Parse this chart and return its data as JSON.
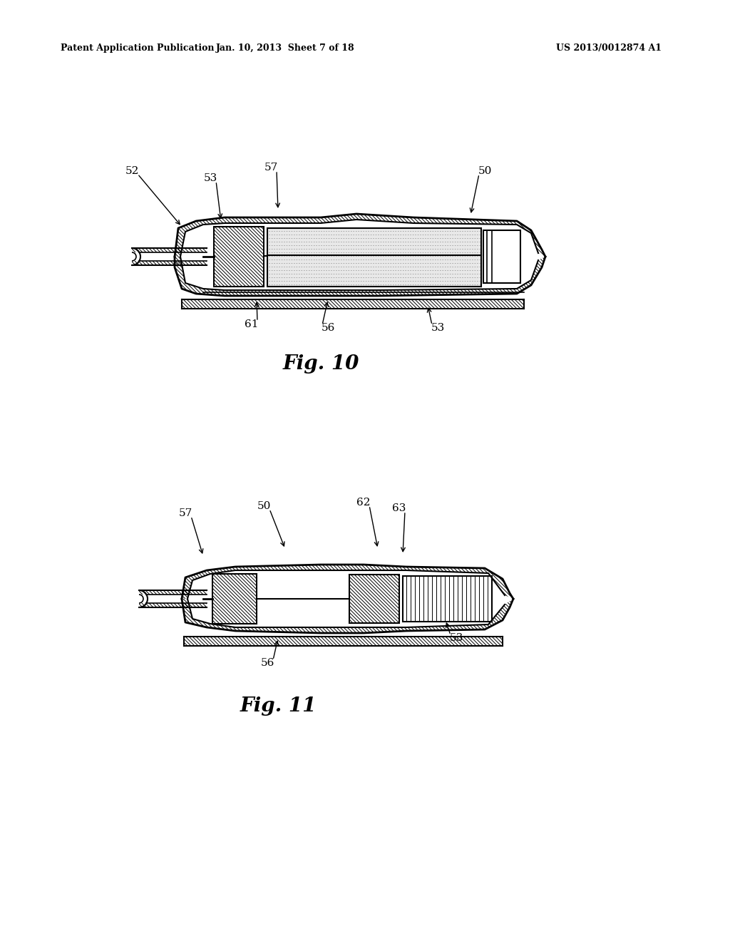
{
  "title_left": "Patent Application Publication",
  "title_mid": "Jan. 10, 2013  Sheet 7 of 18",
  "title_right": "US 2013/0012874 A1",
  "fig10_label": "Fig. 10",
  "fig11_label": "Fig. 11",
  "background_color": "#ffffff",
  "line_color": "#000000",
  "hatch_color": "#000000",
  "fig10_ref_labels": [
    "52",
    "53",
    "57",
    "50",
    "61",
    "56",
    "53"
  ],
  "fig11_ref_labels": [
    "57",
    "50",
    "62",
    "63",
    "56",
    "53"
  ]
}
